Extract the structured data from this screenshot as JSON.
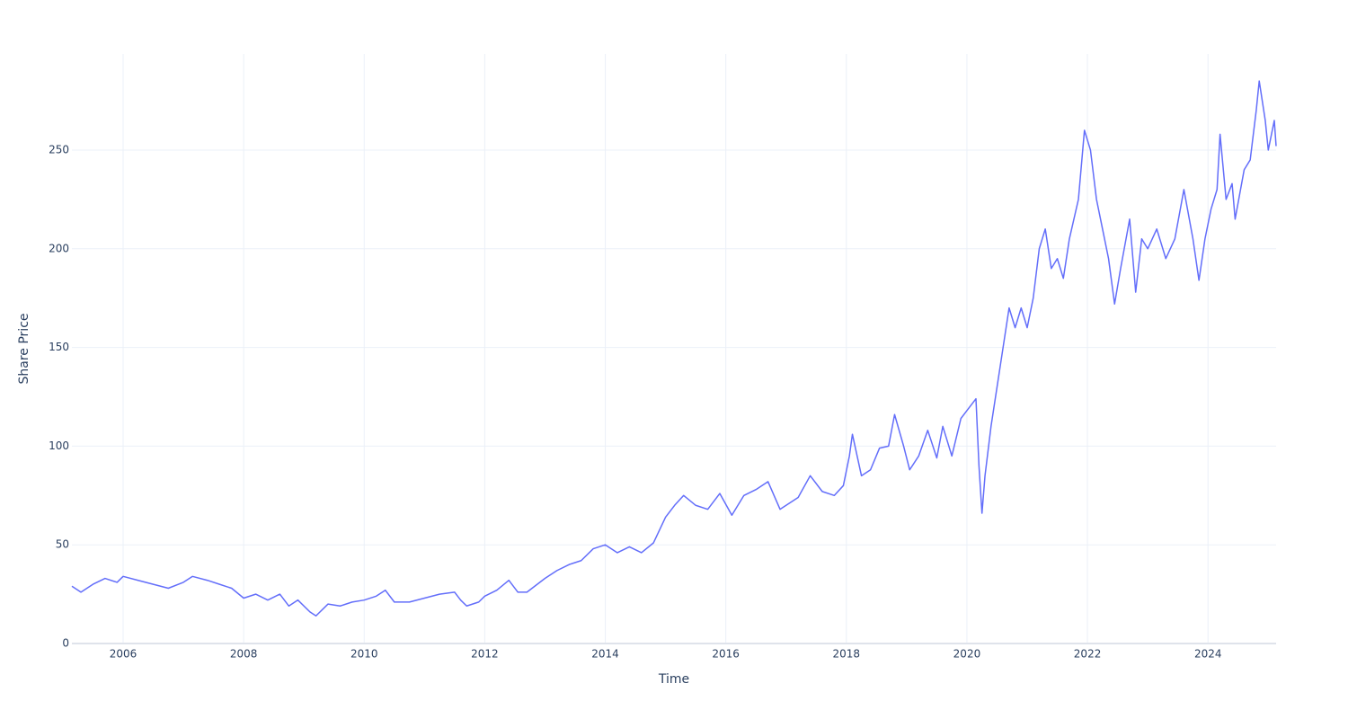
{
  "chart_data": {
    "type": "line",
    "x_label": "Time",
    "y_label": "Share Price",
    "x": [
      2005.15,
      2005.3,
      2005.5,
      2005.7,
      2005.9,
      2006.0,
      2006.25,
      2006.5,
      2006.75,
      2007.0,
      2007.15,
      2007.4,
      2007.6,
      2007.8,
      2008.0,
      2008.2,
      2008.4,
      2008.6,
      2008.75,
      2008.9,
      2009.1,
      2009.2,
      2009.4,
      2009.6,
      2009.8,
      2010.0,
      2010.2,
      2010.35,
      2010.5,
      2010.75,
      2011.0,
      2011.25,
      2011.5,
      2011.6,
      2011.7,
      2011.9,
      2012.0,
      2012.2,
      2012.4,
      2012.55,
      2012.7,
      2013.0,
      2013.2,
      2013.4,
      2013.6,
      2013.8,
      2014.0,
      2014.2,
      2014.4,
      2014.6,
      2014.8,
      2015.0,
      2015.15,
      2015.3,
      2015.5,
      2015.7,
      2015.9,
      2016.1,
      2016.3,
      2016.5,
      2016.7,
      2016.9,
      2017.0,
      2017.2,
      2017.4,
      2017.6,
      2017.8,
      2017.95,
      2018.05,
      2018.1,
      2018.25,
      2018.4,
      2018.55,
      2018.7,
      2018.8,
      2018.95,
      2019.05,
      2019.2,
      2019.35,
      2019.5,
      2019.6,
      2019.75,
      2019.9,
      2020.0,
      2020.15,
      2020.2,
      2020.25,
      2020.3,
      2020.4,
      2020.5,
      2020.6,
      2020.7,
      2020.8,
      2020.9,
      2021.0,
      2021.1,
      2021.2,
      2021.3,
      2021.4,
      2021.5,
      2021.6,
      2021.7,
      2021.85,
      2021.95,
      2022.05,
      2022.15,
      2022.25,
      2022.35,
      2022.45,
      2022.55,
      2022.7,
      2022.8,
      2022.9,
      2023.0,
      2023.15,
      2023.3,
      2023.45,
      2023.6,
      2023.75,
      2023.85,
      2023.95,
      2024.05,
      2024.15,
      2024.2,
      2024.3,
      2024.4,
      2024.45,
      2024.6,
      2024.7,
      2024.8,
      2024.85,
      2024.95,
      2025.0,
      2025.1,
      2025.13
    ],
    "values": [
      29,
      26,
      30,
      33,
      31,
      34,
      32,
      30,
      28,
      31,
      34,
      32,
      30,
      28,
      23,
      25,
      22,
      25,
      19,
      22,
      16,
      14,
      20,
      19,
      21,
      22,
      24,
      27,
      21,
      21,
      23,
      25,
      26,
      22,
      19,
      21,
      24,
      27,
      32,
      26,
      26,
      33,
      37,
      40,
      42,
      48,
      50,
      46,
      49,
      46,
      51,
      64,
      70,
      75,
      70,
      68,
      76,
      65,
      75,
      78,
      82,
      68,
      70,
      74,
      85,
      77,
      75,
      80,
      95,
      106,
      85,
      88,
      99,
      100,
      116,
      100,
      88,
      95,
      108,
      94,
      110,
      95,
      114,
      118,
      124,
      90,
      66,
      85,
      110,
      130,
      150,
      170,
      160,
      170,
      160,
      175,
      200,
      210,
      190,
      195,
      185,
      205,
      225,
      260,
      250,
      225,
      210,
      195,
      172,
      190,
      215,
      178,
      205,
      200,
      210,
      195,
      205,
      230,
      205,
      184,
      205,
      220,
      230,
      258,
      225,
      233,
      215,
      240,
      245,
      270,
      285,
      265,
      250,
      265,
      252
    ],
    "color": "#636efa",
    "xlim": [
      2005.15,
      2025.13
    ],
    "xticks": [
      2006,
      2008,
      2010,
      2012,
      2014,
      2016,
      2018,
      2020,
      2022,
      2024
    ],
    "ylim": [
      0,
      298.7
    ],
    "yticks": [
      0,
      50,
      100,
      150,
      200,
      250
    ],
    "grid": true
  }
}
